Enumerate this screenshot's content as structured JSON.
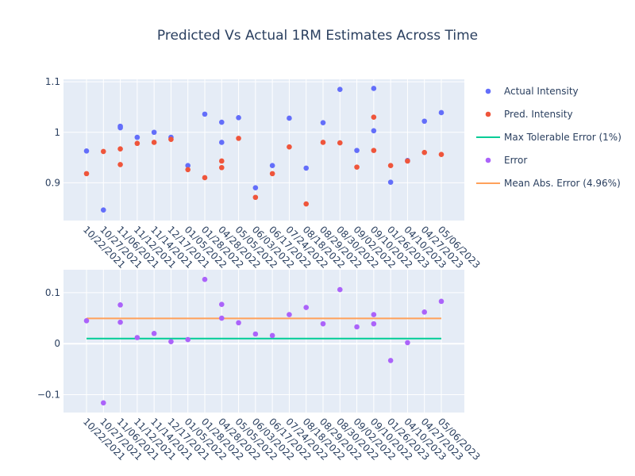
{
  "chart_data": {
    "type": "scatter",
    "title": "Predicted Vs Actual 1RM Estimates Across Time",
    "categories": [
      "10/22/2021",
      "10/27/2021",
      "11/06/2021",
      "11/12/2021",
      "11/14/2021",
      "12/17/2021",
      "01/05/2022",
      "01/28/2022",
      "04/28/2022",
      "05/05/2022",
      "06/03/2022",
      "06/17/2022",
      "07/24/2022",
      "08/18/2022",
      "08/29/2022",
      "08/30/2022",
      "09/02/2022",
      "09/10/2022",
      "01/26/2023",
      "04/10/2023",
      "04/27/2023",
      "05/06/2023"
    ],
    "colors": {
      "actual": "#636efa",
      "pred": "#ef553b",
      "max_err": "#00cc96",
      "error": "#ab63fa",
      "mean_err": "#ffa15a",
      "plot_bg": "#e5ecf6",
      "grid": "#ffffff",
      "text": "#2a3f5f"
    },
    "legend": {
      "placement": "right",
      "entries": [
        "Actual Intensity",
        "Pred. Intensity",
        "Max Tolerable Error (1%)",
        "Error",
        "Mean Abs. Error (4.96%)"
      ]
    },
    "top": {
      "ylim": [
        0.825,
        1.105
      ],
      "yticks": [
        {
          "v": 0.9,
          "label": "0.9"
        },
        {
          "v": 1.0,
          "label": "1"
        },
        {
          "v": 1.1,
          "label": "1.1"
        }
      ],
      "series": [
        {
          "name": "Actual Intensity",
          "color_key": "actual",
          "points": [
            [
              0,
              0.963
            ],
            [
              1,
              0.846
            ],
            [
              2,
              1.012
            ],
            [
              2,
              1.009
            ],
            [
              3,
              0.99
            ],
            [
              4,
              1.0
            ],
            [
              5,
              0.99
            ],
            [
              6,
              0.934
            ],
            [
              7,
              1.036
            ],
            [
              8,
              1.02
            ],
            [
              8,
              0.98
            ],
            [
              9,
              1.029
            ],
            [
              10,
              0.89
            ],
            [
              11,
              0.934
            ],
            [
              12,
              1.028
            ],
            [
              13,
              0.929
            ],
            [
              14,
              1.019
            ],
            [
              15,
              1.085
            ],
            [
              16,
              0.964
            ],
            [
              17,
              1.087
            ],
            [
              17,
              1.003
            ],
            [
              18,
              0.901
            ],
            [
              19,
              0.944
            ],
            [
              20,
              1.022
            ],
            [
              21,
              1.039
            ]
          ]
        },
        {
          "name": "Pred. Intensity",
          "color_key": "pred",
          "points": [
            [
              0,
              0.918
            ],
            [
              1,
              0.962
            ],
            [
              2,
              0.967
            ],
            [
              2,
              0.936
            ],
            [
              3,
              0.978
            ],
            [
              4,
              0.98
            ],
            [
              5,
              0.986
            ],
            [
              6,
              0.926
            ],
            [
              7,
              0.91
            ],
            [
              8,
              0.943
            ],
            [
              8,
              0.93
            ],
            [
              9,
              0.988
            ],
            [
              10,
              0.871
            ],
            [
              11,
              0.918
            ],
            [
              12,
              0.971
            ],
            [
              13,
              0.858
            ],
            [
              14,
              0.98
            ],
            [
              15,
              0.979
            ],
            [
              16,
              0.931
            ],
            [
              17,
              1.03
            ],
            [
              17,
              0.964
            ],
            [
              18,
              0.934
            ],
            [
              19,
              0.943
            ],
            [
              20,
              0.96
            ],
            [
              21,
              0.956
            ]
          ]
        }
      ]
    },
    "bottom": {
      "ylim": [
        -0.135,
        0.145
      ],
      "yticks": [
        {
          "v": -0.1,
          "label": "−0.1"
        },
        {
          "v": 0,
          "label": "0"
        },
        {
          "v": 0.1,
          "label": "0.1"
        }
      ],
      "series": [
        {
          "name": "Error",
          "color_key": "error",
          "points": [
            [
              0,
              0.045
            ],
            [
              1,
              -0.116
            ],
            [
              2,
              0.076
            ],
            [
              2,
              0.042
            ],
            [
              3,
              0.012
            ],
            [
              4,
              0.02
            ],
            [
              5,
              0.004
            ],
            [
              6,
              0.008
            ],
            [
              7,
              0.126
            ],
            [
              8,
              0.077
            ],
            [
              8,
              0.05
            ],
            [
              9,
              0.041
            ],
            [
              10,
              0.019
            ],
            [
              11,
              0.016
            ],
            [
              12,
              0.057
            ],
            [
              13,
              0.071
            ],
            [
              14,
              0.039
            ],
            [
              15,
              0.106
            ],
            [
              16,
              0.033
            ],
            [
              17,
              0.057
            ],
            [
              17,
              0.039
            ],
            [
              18,
              -0.033
            ],
            [
              19,
              0.002
            ],
            [
              20,
              0.062
            ],
            [
              21,
              0.083
            ]
          ]
        }
      ],
      "lines": [
        {
          "name": "Max Tolerable Error (1%)",
          "color_key": "max_err",
          "value": 0.01
        },
        {
          "name": "Mean Abs. Error (4.96%)",
          "color_key": "mean_err",
          "value": 0.0496
        }
      ]
    }
  }
}
